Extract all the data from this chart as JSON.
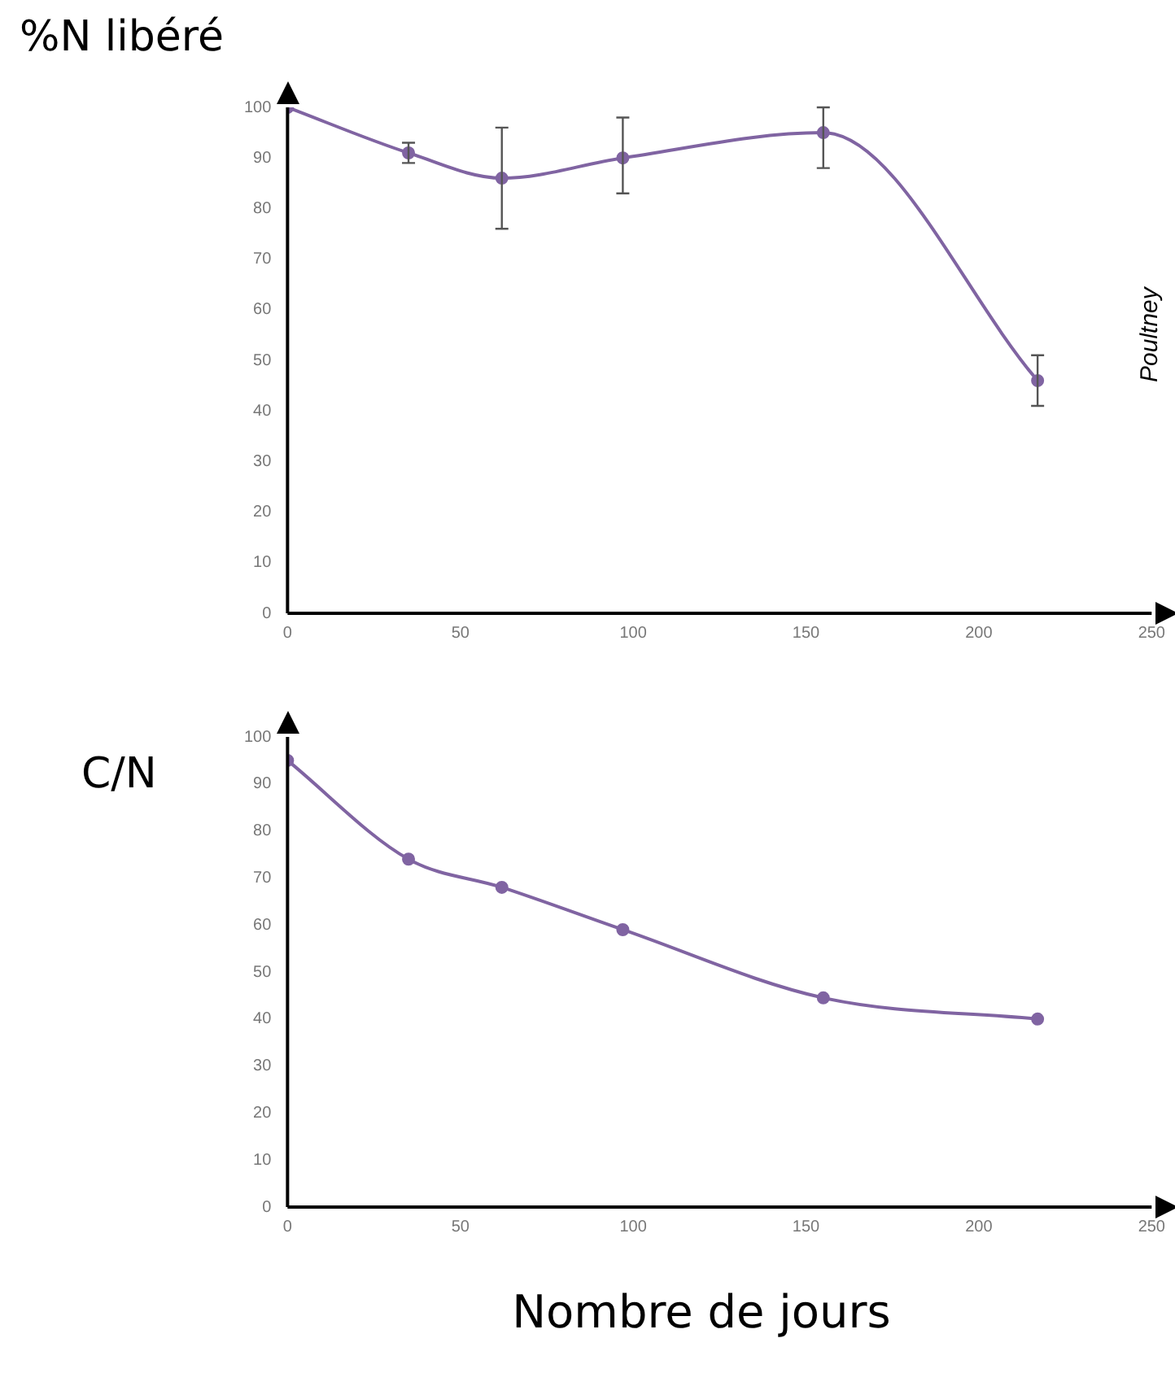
{
  "chart_data": [
    {
      "type": "line",
      "ylabel": "%N libéré",
      "annotations": [
        "Poultney"
      ],
      "x": [
        0,
        35,
        62,
        97,
        155,
        217
      ],
      "series": [
        {
          "color": "#8064a2",
          "values": [
            100,
            91,
            86,
            90,
            95,
            46
          ],
          "errors": [
            null,
            [
              89,
              93
            ],
            [
              76,
              96
            ],
            [
              83,
              98
            ],
            [
              88,
              100
            ],
            [
              41,
              51
            ]
          ]
        }
      ],
      "xlim": [
        0,
        250
      ],
      "xticks": [
        0,
        50,
        100,
        150,
        200,
        250
      ],
      "ylim": [
        0,
        100
      ],
      "yticks": [
        0,
        10,
        20,
        30,
        40,
        50,
        60,
        70,
        80,
        90,
        100
      ],
      "grid": false,
      "legend": false,
      "marker": "circle",
      "line_style": "solid"
    },
    {
      "type": "line",
      "ylabel": "C/N",
      "xlabel": "Nombre de jours",
      "x": [
        0,
        35,
        62,
        97,
        155,
        217
      ],
      "series": [
        {
          "color": "#8064a2",
          "values": [
            95,
            74,
            68,
            59,
            44.5,
            40
          ]
        }
      ],
      "xlim": [
        0,
        250
      ],
      "xticks": [
        0,
        50,
        100,
        150,
        200,
        250
      ],
      "ylim": [
        0,
        100
      ],
      "yticks": [
        0,
        10,
        20,
        30,
        40,
        50,
        60,
        70,
        80,
        90,
        100
      ],
      "grid": false,
      "legend": false,
      "marker": "circle",
      "line_style": "solid"
    }
  ]
}
